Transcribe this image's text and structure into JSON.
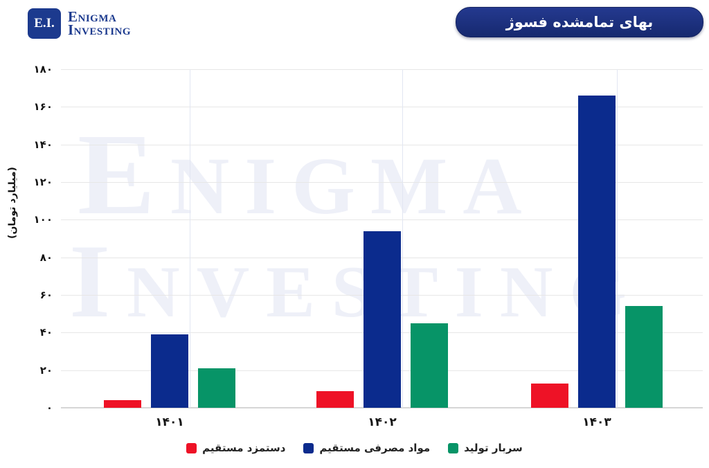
{
  "header": {
    "logo": {
      "badge_text": "E.I.",
      "name_line1": "Enigma",
      "name_line2": "Investing"
    },
    "title_badge": "بهای تمامشده فسوژ"
  },
  "watermark": {
    "line1": "Enigma",
    "line2": "Investing"
  },
  "chart_data": {
    "type": "bar",
    "title": "بهای تمامشده فسوژ",
    "ylabel": "(میلیارد تومان)",
    "categories": [
      "۱۴۰۱",
      "۱۴۰۲",
      "۱۴۰۳"
    ],
    "series": [
      {
        "name": "دستمزد مستقیم",
        "color": "#ee1226",
        "values": [
          4,
          9,
          13
        ]
      },
      {
        "name": "مواد مصرفی مستقیم",
        "color": "#0b2b8d",
        "values": [
          39,
          94,
          166
        ]
      },
      {
        "name": "سربار تولید",
        "color": "#079467",
        "values": [
          21,
          45,
          54
        ]
      }
    ],
    "ylim": [
      0,
      180
    ],
    "ytick_values": [
      0,
      20,
      40,
      60,
      80,
      100,
      120,
      140,
      160,
      180
    ],
    "ytick_labels": [
      "۰",
      "۲۰",
      "۴۰",
      "۶۰",
      "۸۰",
      "۱۰۰",
      "۱۲۰",
      "۱۴۰",
      "۱۶۰",
      "۱۸۰"
    ],
    "grid": "horizontal",
    "legend_position": "bottom"
  },
  "colors": {
    "brand_navy": "#1c3a8e",
    "title_pill_navy": "#1b2f7d",
    "watermark": "#eef0f8",
    "gridline": "#e7e7e7",
    "axis_line": "#d6d6d6"
  }
}
